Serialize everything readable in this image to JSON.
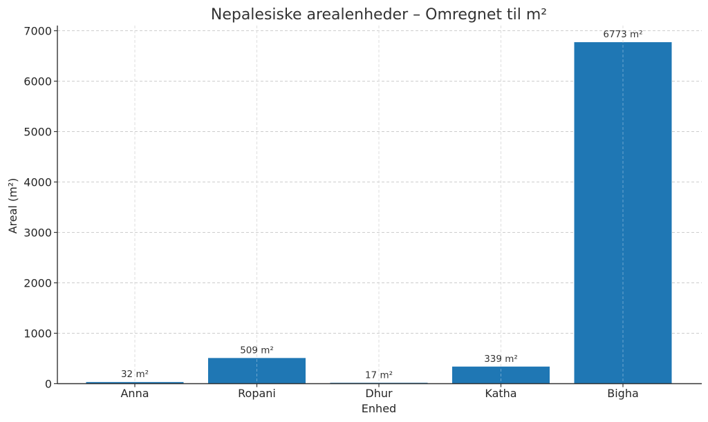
{
  "chart_data": {
    "type": "bar",
    "title": "Nepalesiske arealenheder – Omregnet til m²",
    "xlabel": "Enhed",
    "ylabel": "Areal (m²)",
    "categories": [
      "Anna",
      "Ropani",
      "Dhur",
      "Katha",
      "Bigha"
    ],
    "values": [
      32,
      509,
      17,
      339,
      6773
    ],
    "value_labels": [
      "32 m²",
      "509 m²",
      "17 m²",
      "339 m²",
      "6773 m²"
    ],
    "yticks": [
      0,
      1000,
      2000,
      3000,
      4000,
      5000,
      6000,
      7000
    ],
    "ylim": [
      0,
      7100
    ],
    "grid": true,
    "legend": null,
    "bar_color": "#1f77b4"
  }
}
